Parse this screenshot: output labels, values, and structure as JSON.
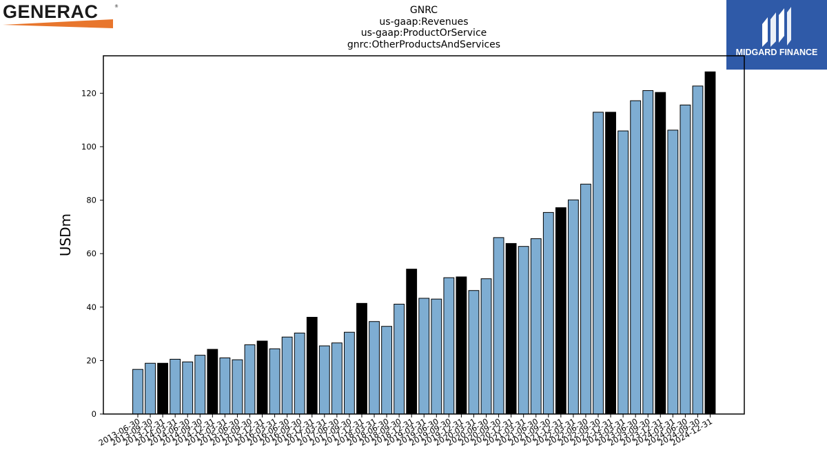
{
  "logos": {
    "left_brand": "GENERAC",
    "left_reg": "®",
    "left_accent_color": "#e8762d",
    "right_brand": "MIDGARD FINANCE",
    "right_bg_color": "#2f5aa8"
  },
  "chart_data": {
    "type": "bar",
    "title_lines": [
      "GNRC",
      "us-gaap:Revenues",
      "us-gaap:ProductOrService",
      "gnrc:OtherProductsAndServices"
    ],
    "ylabel": "USDm",
    "xlabel": "",
    "ylim": [
      0,
      134
    ],
    "yticks": [
      0,
      20,
      40,
      60,
      80,
      100,
      120
    ],
    "bar_color": "#7eadd2",
    "highlight_color": "#000000",
    "categories": [
      "2013-06-30",
      "2013-09-30",
      "2013-12-31",
      "2014-03-31",
      "2014-06-30",
      "2014-09-30",
      "2014-12-31",
      "2015-03-31",
      "2015-06-30",
      "2015-09-30",
      "2015-12-31",
      "2016-03-31",
      "2016-06-30",
      "2016-09-30",
      "2016-12-31",
      "2017-03-31",
      "2017-06-30",
      "2017-09-30",
      "2017-12-31",
      "2018-03-31",
      "2018-06-30",
      "2018-09-30",
      "2018-12-31",
      "2019-03-31",
      "2019-06-30",
      "2019-09-30",
      "2019-12-31",
      "2020-03-31",
      "2020-06-30",
      "2020-09-30",
      "2020-12-31",
      "2021-03-31",
      "2021-06-30",
      "2021-09-30",
      "2021-12-31",
      "2022-03-31",
      "2022-06-30",
      "2022-09-30",
      "2022-12-31",
      "2023-03-31",
      "2023-06-30",
      "2023-09-30",
      "2023-12-31",
      "2024-03-31",
      "2024-06-30",
      "2024-09-30",
      "2024-12-31"
    ],
    "values": [
      16.7,
      19.0,
      19.0,
      20.5,
      19.5,
      22.0,
      24.2,
      21.0,
      20.3,
      25.9,
      27.3,
      24.4,
      28.8,
      30.3,
      36.2,
      25.5,
      26.6,
      30.6,
      41.4,
      34.6,
      32.8,
      41.1,
      54.2,
      43.3,
      43.0,
      51.0,
      51.3,
      46.2,
      50.6,
      66.0,
      63.8,
      62.7,
      65.6,
      75.4,
      77.2,
      80.1,
      86.0,
      112.9,
      112.9,
      105.9,
      117.2,
      121.0,
      120.3,
      106.2,
      115.6,
      122.7,
      128.0
    ],
    "highlight": [
      false,
      false,
      true,
      false,
      false,
      false,
      true,
      false,
      false,
      false,
      true,
      false,
      false,
      false,
      true,
      false,
      false,
      false,
      true,
      false,
      false,
      false,
      true,
      false,
      false,
      false,
      true,
      false,
      false,
      false,
      true,
      false,
      false,
      false,
      true,
      false,
      false,
      false,
      true,
      false,
      false,
      false,
      true,
      false,
      false,
      false,
      true
    ],
    "grid": false,
    "legend": "none"
  }
}
